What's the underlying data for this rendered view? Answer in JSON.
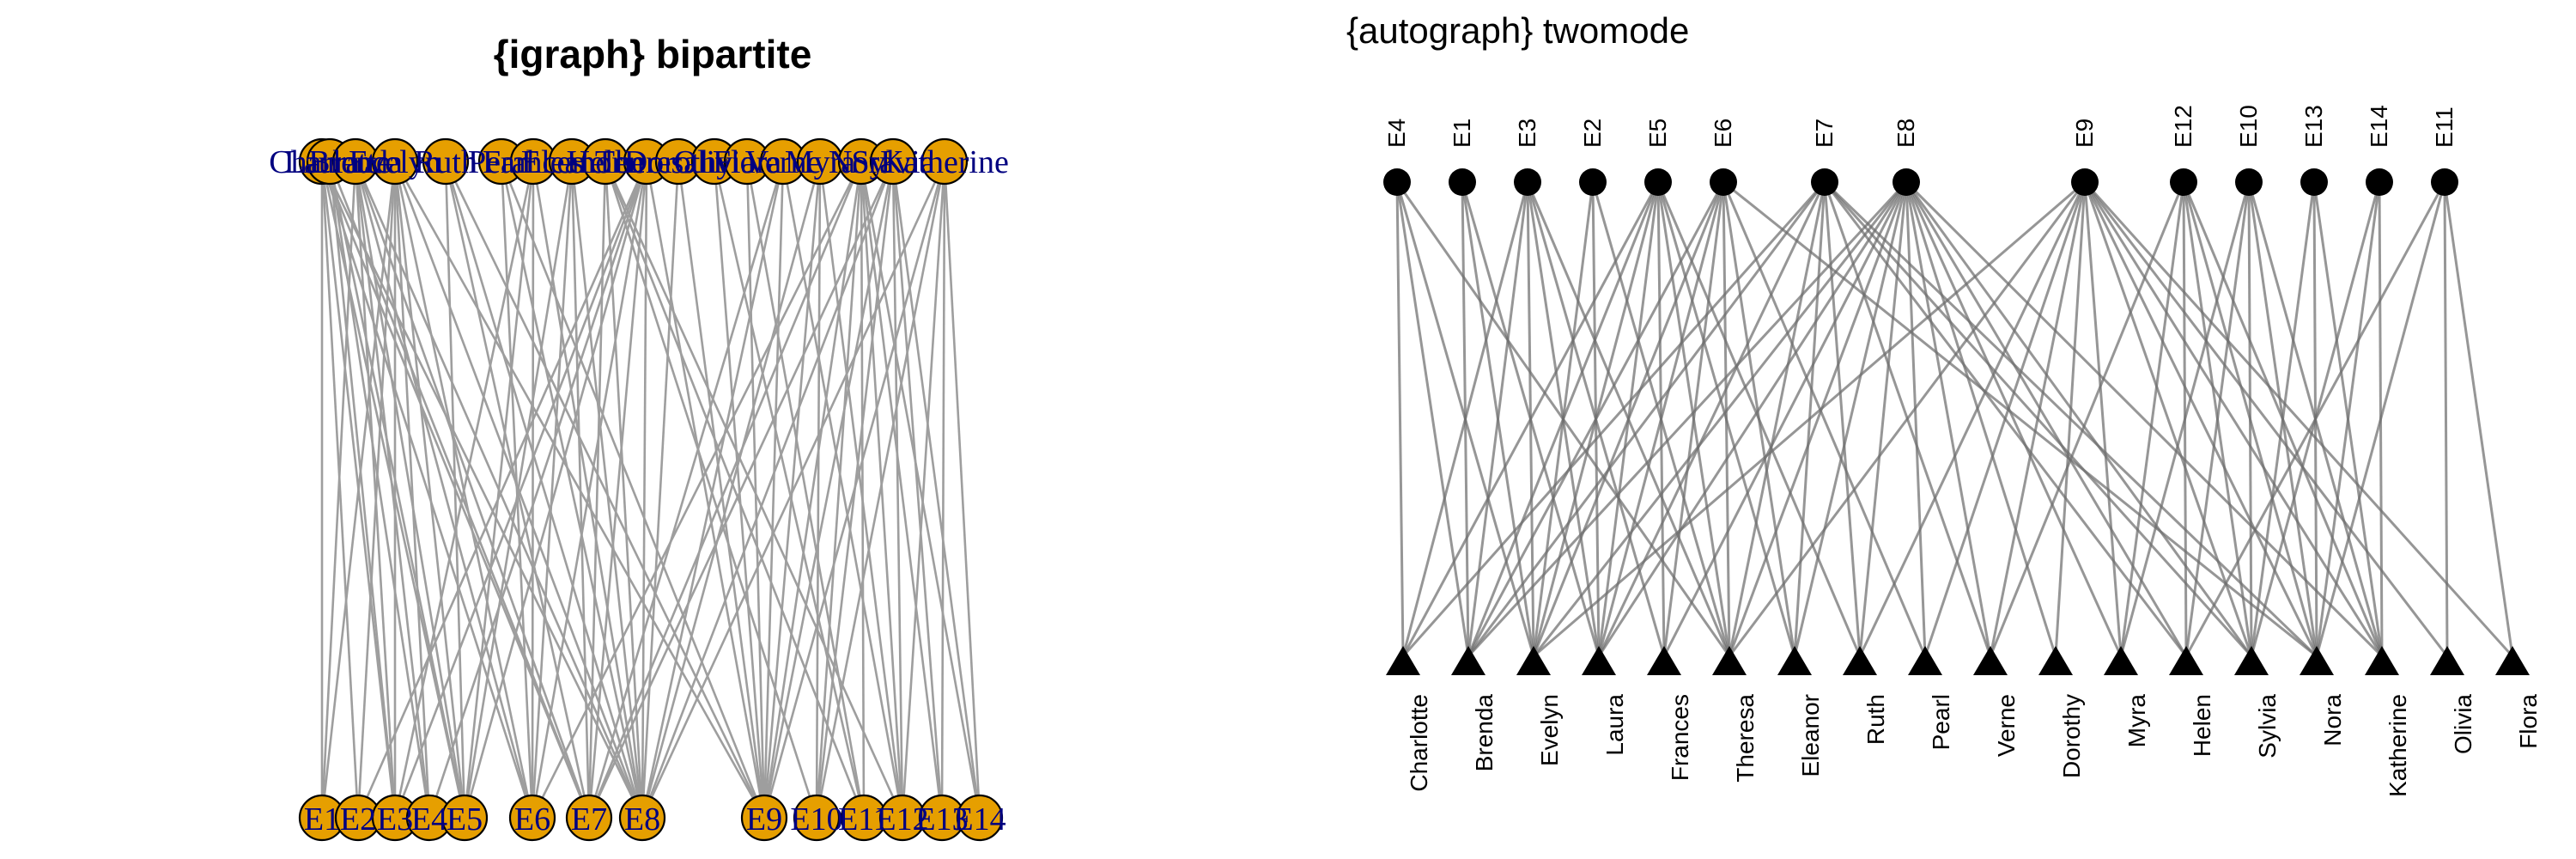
{
  "figure": {
    "left_title": "{igraph} bipartite",
    "right_title": "{autograph} twomode"
  },
  "colors": {
    "edge": "#9e9e9e",
    "igraph_node_fill": "#E69F00",
    "igraph_node_stroke": "#000000",
    "igraph_label": "#000080",
    "autograph_node": "#000000",
    "autograph_edge": "#6e6e6e"
  },
  "igraph_panel": {
    "top_nodes": [
      "Laura",
      "Charlotte",
      "Brenda",
      "Evelyn",
      "Ruth",
      "Pearl",
      "Frances",
      "Eleanor",
      "Helen",
      "Theresa",
      "Dorothy",
      "Olivia",
      "Flora",
      "Verne",
      "Myra",
      "Nora",
      "Sylvia",
      "Katherine"
    ],
    "bottom_nodes": [
      "E1",
      "E2",
      "E3",
      "E4",
      "E5",
      "E6",
      "E7",
      "E8",
      "E9",
      "E10",
      "E11",
      "E12",
      "E13",
      "E14"
    ]
  },
  "autograph_panel": {
    "event_order": [
      "E4",
      "E1",
      "E3",
      "E2",
      "E5",
      "E6",
      "E7",
      "E8",
      "E9",
      "E12",
      "E10",
      "E13",
      "E14",
      "E11"
    ],
    "woman_order": [
      "Charlotte",
      "Brenda",
      "Evelyn",
      "Laura",
      "Frances",
      "Theresa",
      "Eleanor",
      "Ruth",
      "Pearl",
      "Verne",
      "Dorothy",
      "Myra",
      "Helen",
      "Sylvia",
      "Nora",
      "Katherine",
      "Olivia",
      "Flora"
    ]
  },
  "attendance": {
    "Evelyn": [
      "E1",
      "E2",
      "E3",
      "E4",
      "E5",
      "E6",
      "E8",
      "E9"
    ],
    "Laura": [
      "E1",
      "E2",
      "E3",
      "E5",
      "E6",
      "E7",
      "E8"
    ],
    "Theresa": [
      "E2",
      "E3",
      "E4",
      "E5",
      "E6",
      "E7",
      "E8",
      "E9"
    ],
    "Brenda": [
      "E1",
      "E3",
      "E4",
      "E5",
      "E6",
      "E7",
      "E8"
    ],
    "Charlotte": [
      "E3",
      "E4",
      "E5",
      "E7"
    ],
    "Frances": [
      "E3",
      "E5",
      "E6",
      "E8"
    ],
    "Eleanor": [
      "E5",
      "E6",
      "E7",
      "E8"
    ],
    "Pearl": [
      "E6",
      "E8",
      "E9"
    ],
    "Ruth": [
      "E5",
      "E7",
      "E8",
      "E9"
    ],
    "Verne": [
      "E7",
      "E8",
      "E9",
      "E12"
    ],
    "Myra": [
      "E8",
      "E9",
      "E10",
      "E12"
    ],
    "Katherine": [
      "E8",
      "E9",
      "E10",
      "E12",
      "E13",
      "E14"
    ],
    "Sylvia": [
      "E7",
      "E8",
      "E9",
      "E10",
      "E12",
      "E13",
      "E14"
    ],
    "Nora": [
      "E6",
      "E7",
      "E9",
      "E10",
      "E11",
      "E12",
      "E13",
      "E14"
    ],
    "Helen": [
      "E7",
      "E8",
      "E10",
      "E11",
      "E12"
    ],
    "Dorothy": [
      "E8",
      "E9"
    ],
    "Olivia": [
      "E9",
      "E11"
    ],
    "Flora": [
      "E9",
      "E11"
    ]
  }
}
